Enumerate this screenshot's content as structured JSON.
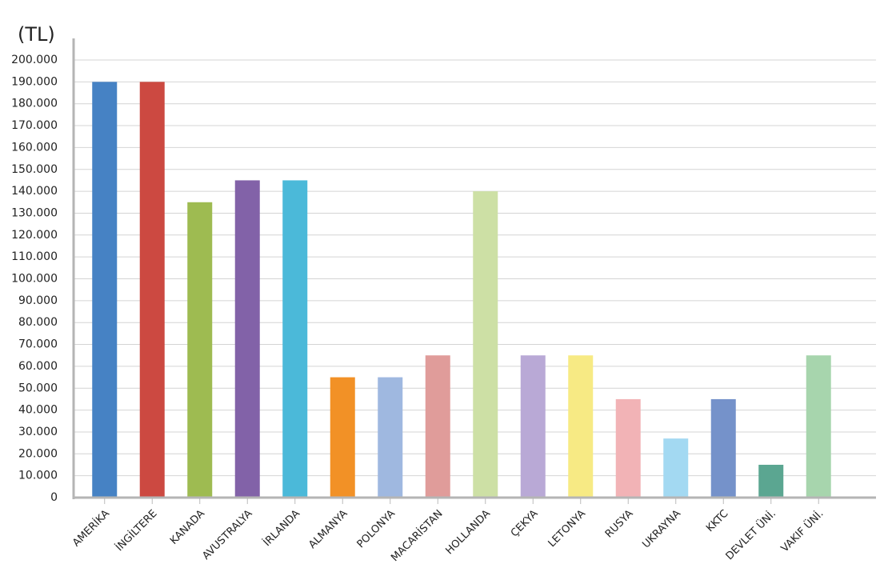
{
  "chart_data": {
    "type": "bar",
    "y_label": "(TL)",
    "categories": [
      "AMERİKA",
      "İNGİLTERE",
      "KANADA",
      "AVUSTRALYA",
      "İRLANDA",
      "ALMANYA",
      "POLONYA",
      "MACARİSTAN",
      "HOLLANDA",
      "ÇEKYA",
      "LETONYA",
      "RUSYA",
      "UKRAYNA",
      "KKTC",
      "DEVLET ÜNİ.",
      "VAKIF ÜNİ."
    ],
    "values": [
      190000,
      190000,
      135000,
      145000,
      145000,
      55000,
      55000,
      65000,
      140000,
      65000,
      65000,
      45000,
      27000,
      45000,
      15000,
      65000
    ],
    "colors": [
      "#4682c4",
      "#cc4941",
      "#9ebb51",
      "#8262a8",
      "#4bb9d9",
      "#f29126",
      "#9fb8e0",
      "#e09c9a",
      "#cde0a5",
      "#b9a9d6",
      "#f7ea84",
      "#f2b3b6",
      "#a3d9f2",
      "#7592ca",
      "#5ba691",
      "#a7d5ad"
    ],
    "ylim": [
      0,
      200000
    ],
    "yticks": [
      0,
      {
        "value": 10000,
        "label": "10.000"
      },
      {
        "value": 20000,
        "label": "20.000"
      },
      {
        "value": 30000,
        "label": "30.000"
      },
      {
        "value": 40000,
        "label": "40.000"
      },
      {
        "value": 50000,
        "label": "50.000"
      },
      {
        "value": 60000,
        "label": "60.000"
      },
      {
        "value": 70000,
        "label": "70.000"
      },
      {
        "value": 80000,
        "label": "80.000"
      },
      {
        "value": 90000,
        "label": "90.000"
      },
      {
        "value": 100000,
        "label": "100.000"
      },
      {
        "value": 110000,
        "label": "110.000"
      },
      {
        "value": 120000,
        "label": "120.000"
      },
      {
        "value": 130000,
        "label": "130.000"
      },
      {
        "value": 140000,
        "label": "140.000"
      },
      {
        "value": 150000,
        "label": "150.000"
      },
      {
        "value": 160000,
        "label": "160.000"
      },
      {
        "value": 170000,
        "label": "170.000"
      },
      {
        "value": 180000,
        "label": "180.000"
      },
      {
        "value": 190000,
        "label": "190.000"
      },
      {
        "value": 200000,
        "label": "200.000"
      }
    ],
    "grid": true
  }
}
